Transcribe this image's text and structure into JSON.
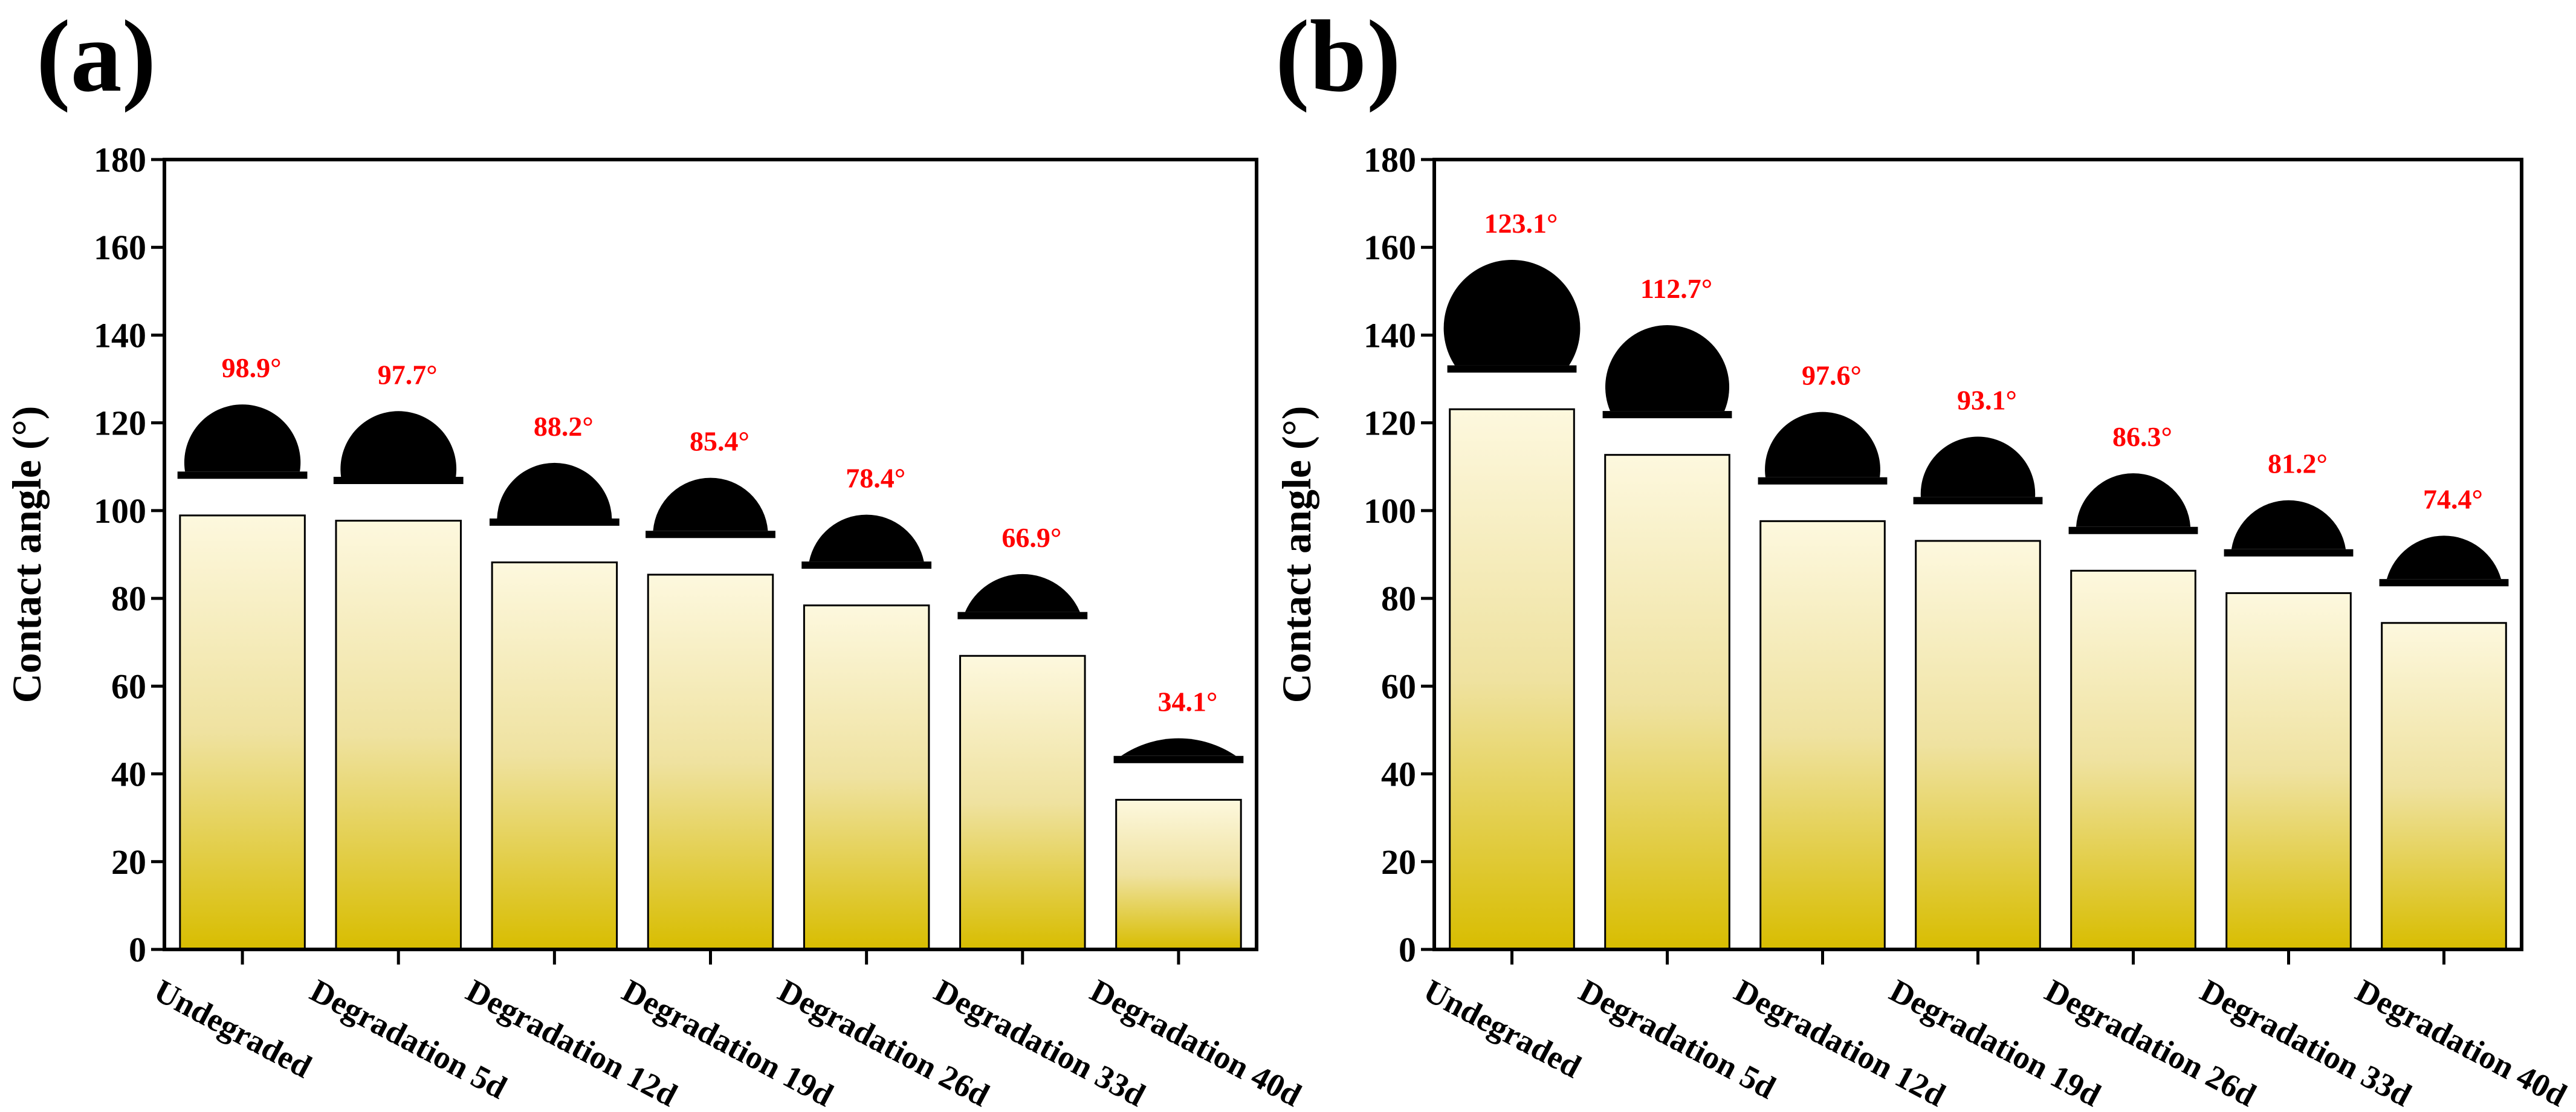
{
  "colors": {
    "bar_top": "#fdf8de",
    "bar_bottom": "#d8bd00",
    "value_label": "#ff0000",
    "droplet": "#000000"
  },
  "chart_data": [
    {
      "type": "bar",
      "panel_label": "(a)",
      "ylabel": "Contact angle (°)",
      "xlabel": "",
      "ylim": [
        0,
        180
      ],
      "yticks": [
        0,
        20,
        40,
        60,
        80,
        100,
        120,
        140,
        160,
        180
      ],
      "categories": [
        "Undegraded",
        "Degradation 5d",
        "Degradation 12d",
        "Degradation 19d",
        "Degradation 26d",
        "Degradation 33d",
        "Degradation 40d"
      ],
      "values": [
        98.9,
        97.7,
        88.2,
        85.4,
        78.4,
        66.9,
        34.1
      ],
      "value_labels": [
        "98.9°",
        "97.7°",
        "88.2°",
        "85.4°",
        "78.4°",
        "66.9°",
        "34.1°"
      ]
    },
    {
      "type": "bar",
      "panel_label": "(b)",
      "ylabel": "Contact angle (°)",
      "xlabel": "",
      "ylim": [
        0,
        180
      ],
      "yticks": [
        0,
        20,
        40,
        60,
        80,
        100,
        120,
        140,
        160,
        180
      ],
      "categories": [
        "Undegraded",
        "Degradation 5d",
        "Degradation 12d",
        "Degradation 19d",
        "Degradation 26d",
        "Degradation 33d",
        "Degradation 40d"
      ],
      "values": [
        123.1,
        112.7,
        97.6,
        93.1,
        86.3,
        81.2,
        74.4
      ],
      "value_labels": [
        "123.1°",
        "112.7°",
        "97.6°",
        "93.1°",
        "86.3°",
        "81.2°",
        "74.4°"
      ]
    }
  ]
}
